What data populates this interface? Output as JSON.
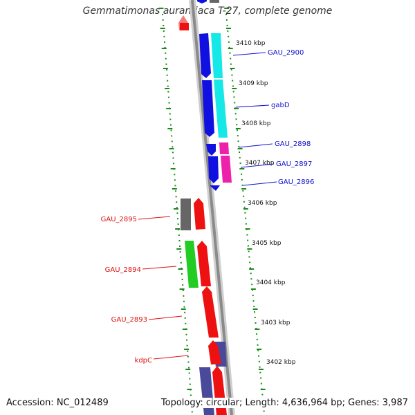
{
  "title": "Gemmatimonas aurantiaca T-27, complete genome",
  "accession": "Accession: NC_012489",
  "summary": "Topology: circular; Length: 4,636,964 bp; Genes: 3,987",
  "colors": {
    "backbone": "#8a8a8a",
    "ticks": "#1a8a1a",
    "right_labels": "#1010d0",
    "left_labels": "#dd1111",
    "cyan": "#16e8e8",
    "blue": "#1010e0",
    "magenta": "#ee22aa",
    "gray": "#666666",
    "red": "#ee1111",
    "green": "#22cc22",
    "slate": "#4a4a9a"
  },
  "kbp_labels": [
    "3410 kbp",
    "3409 kbp",
    "3408 kbp",
    "3407 kbp",
    "3406 kbp",
    "3405 kbp",
    "3404 kbp",
    "3403 kbp",
    "3402 kbp"
  ],
  "gene_labels_right": [
    "GAU_2900",
    "gabD",
    "GAU_2898",
    "GAU_2897",
    "GAU_2896"
  ],
  "gene_labels_left": [
    "GAU_2895",
    "GAU_2894",
    "GAU_2893",
    "kdpC"
  ]
}
